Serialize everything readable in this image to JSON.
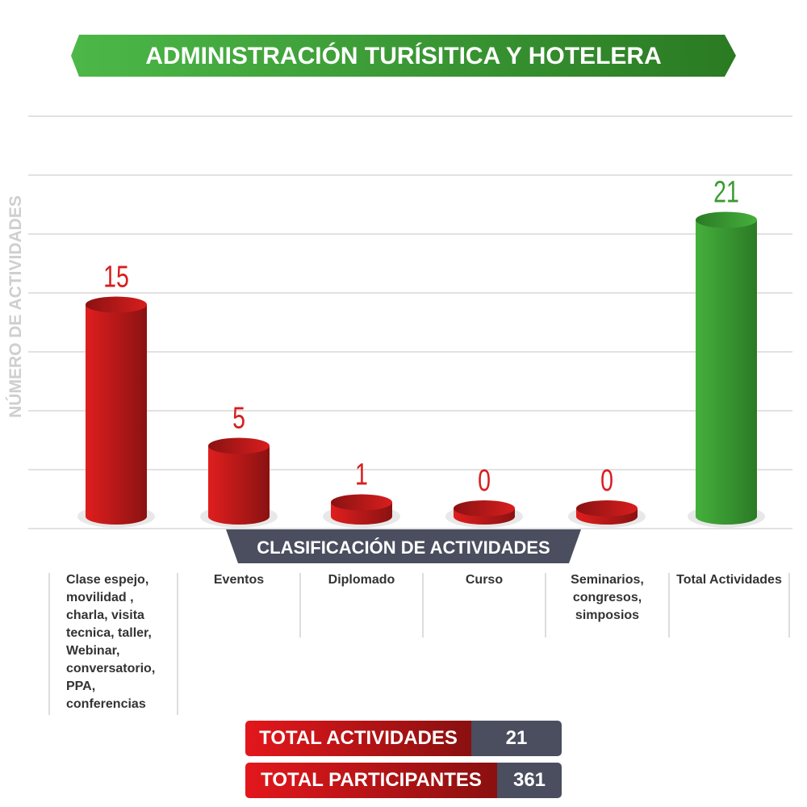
{
  "title": "ADMINISTRACIÓN  TURÍSITICA Y HOTELERA",
  "chart_data": {
    "type": "bar",
    "title": "ADMINISTRACIÓN  TURÍSITICA Y HOTELERA",
    "ylabel": "NÚMERO DE ACTIVIDADES",
    "xlabel": "CLASIFICACIÓN DE ACTIVIDADES",
    "categories": [
      "Clase espejo, movilidad , charla, visita tecnica, taller, Webinar, conversatorio, PPA, conferencias",
      "Eventos",
      "Diplomado",
      "Curso",
      "Seminarios, congresos, simposios",
      "Total Actividades"
    ],
    "values": [
      15,
      5,
      1,
      0,
      0,
      21
    ],
    "value_labels": [
      "15",
      "5",
      "1",
      "0",
      "0",
      "21"
    ],
    "colors": [
      "#d81e1e",
      "#d81e1e",
      "#d81e1e",
      "#d81e1e",
      "#d81e1e",
      "#3fa535"
    ],
    "grid": true
  },
  "totals": [
    {
      "label": "TOTAL ACTIVIDADES",
      "value": "21"
    },
    {
      "label": "TOTAL PARTICIPANTES",
      "value": "361"
    }
  ]
}
